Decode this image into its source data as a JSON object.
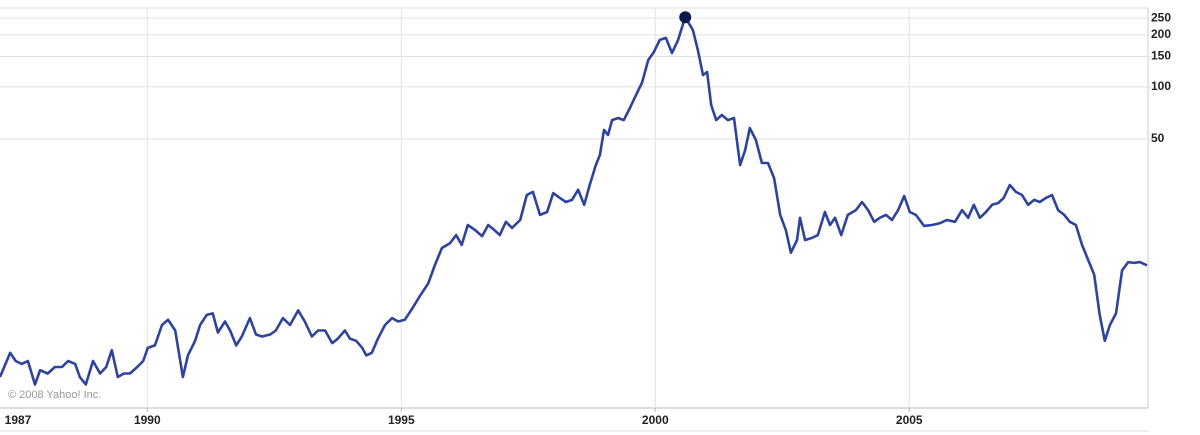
{
  "chart_data": {
    "type": "line",
    "credit": "© 2008 Yahoo! Inc.",
    "color": "#2e449c",
    "marker_color": "#0b1a4d",
    "log_scale": true,
    "grid": true,
    "xlim": [
      1987.1,
      2009.7
    ],
    "ylim": [
      1.39,
      286
    ],
    "xticks": [
      1987,
      1990,
      1995,
      2000,
      2005
    ],
    "yticks": [
      50,
      100,
      150,
      200,
      250
    ],
    "x": [
      1987.1,
      1987.3,
      1987.41,
      1987.53,
      1987.65,
      1987.79,
      1987.89,
      1988.04,
      1988.18,
      1988.32,
      1988.44,
      1988.58,
      1988.67,
      1988.79,
      1988.93,
      1989.07,
      1989.19,
      1989.3,
      1989.42,
      1989.54,
      1989.66,
      1989.8,
      1989.92,
      1990.01,
      1990.15,
      1990.29,
      1990.41,
      1990.55,
      1990.7,
      1990.8,
      1990.94,
      1991.04,
      1991.17,
      1991.29,
      1991.39,
      1991.53,
      1991.63,
      1991.75,
      1991.86,
      1992.02,
      1992.14,
      1992.26,
      1992.42,
      1992.53,
      1992.67,
      1992.81,
      1992.97,
      1993.1,
      1993.24,
      1993.36,
      1993.5,
      1993.64,
      1993.75,
      1993.89,
      1993.99,
      1994.11,
      1994.23,
      1994.31,
      1994.42,
      1994.54,
      1994.68,
      1994.82,
      1994.94,
      1995.07,
      1995.21,
      1995.37,
      1995.53,
      1995.66,
      1995.8,
      1995.96,
      1996.08,
      1996.19,
      1996.31,
      1996.45,
      1996.59,
      1996.71,
      1996.83,
      1996.94,
      1997.06,
      1997.18,
      1997.34,
      1997.47,
      1997.59,
      1997.73,
      1997.87,
      1997.99,
      1998.12,
      1998.24,
      1998.36,
      1998.48,
      1998.6,
      1998.71,
      1998.83,
      1998.91,
      1998.99,
      1999.07,
      1999.15,
      1999.27,
      1999.38,
      1999.5,
      1999.62,
      1999.74,
      1999.86,
      1999.97,
      2000.09,
      2000.21,
      2000.33,
      2000.45,
      2000.59,
      2000.74,
      2000.84,
      2000.94,
      2001.02,
      2001.1,
      2001.2,
      2001.31,
      2001.43,
      2001.55,
      2001.67,
      2001.77,
      2001.86,
      2001.98,
      2002.1,
      2002.22,
      2002.34,
      2002.46,
      2002.57,
      2002.67,
      2002.79,
      2002.85,
      2002.95,
      2003.09,
      2003.2,
      2003.34,
      2003.44,
      2003.54,
      2003.66,
      2003.79,
      2003.95,
      2004.07,
      2004.19,
      2004.31,
      2004.42,
      2004.54,
      2004.66,
      2004.78,
      2004.9,
      2005.01,
      2005.13,
      2005.29,
      2005.45,
      2005.61,
      2005.74,
      2005.9,
      2006.04,
      2006.16,
      2006.27,
      2006.39,
      2006.51,
      2006.63,
      2006.75,
      2006.86,
      2006.98,
      2007.1,
      2007.22,
      2007.34,
      2007.46,
      2007.57,
      2007.69,
      2007.81,
      2007.93,
      2008.05,
      2008.16,
      2008.28,
      2008.4,
      2008.52,
      2008.64,
      2008.75,
      2008.85,
      2008.95,
      2009.07,
      2009.19,
      2009.31,
      2009.42,
      2009.54,
      2009.68
    ],
    "values": [
      2.1,
      2.9,
      2.6,
      2.5,
      2.6,
      1.9,
      2.3,
      2.2,
      2.4,
      2.4,
      2.6,
      2.5,
      2.1,
      1.9,
      2.6,
      2.2,
      2.4,
      3.0,
      2.1,
      2.2,
      2.2,
      2.4,
      2.6,
      3.1,
      3.2,
      4.2,
      4.5,
      3.9,
      2.1,
      2.8,
      3.4,
      4.2,
      4.8,
      4.9,
      3.8,
      4.4,
      3.9,
      3.2,
      3.6,
      4.6,
      3.7,
      3.6,
      3.7,
      3.9,
      4.6,
      4.2,
      5.1,
      4.4,
      3.6,
      3.9,
      3.9,
      3.3,
      3.5,
      3.9,
      3.5,
      3.4,
      3.1,
      2.8,
      2.9,
      3.5,
      4.2,
      4.6,
      4.4,
      4.5,
      5.2,
      6.2,
      7.3,
      9.3,
      11.7,
      12.5,
      13.9,
      12.2,
      15.9,
      14.9,
      13.7,
      15.9,
      14.9,
      13.9,
      16.6,
      15.3,
      17.0,
      23.7,
      24.7,
      18.2,
      18.9,
      24.3,
      22.8,
      21.6,
      22.2,
      25.4,
      20.8,
      27.1,
      35.3,
      40.4,
      56.4,
      52.7,
      64.3,
      66.1,
      64.3,
      75.5,
      89.7,
      106,
      143,
      159,
      187,
      192,
      157,
      187,
      253,
      213,
      163,
      117,
      122,
      78.5,
      64.3,
      68.8,
      64.3,
      66.1,
      35.3,
      43.2,
      57.8,
      49.3,
      36.3,
      36.3,
      29.7,
      18.2,
      14.9,
      11.0,
      13.0,
      17.5,
      13.0,
      13.4,
      13.9,
      18.9,
      15.9,
      17.5,
      13.9,
      18.2,
      19.4,
      21.6,
      19.4,
      16.6,
      17.5,
      18.2,
      17.0,
      19.4,
      23.4,
      18.9,
      18.2,
      15.7,
      15.9,
      16.3,
      17.0,
      16.6,
      19.4,
      17.5,
      20.8,
      17.5,
      18.9,
      20.8,
      21.3,
      22.8,
      27.1,
      24.7,
      23.7,
      20.8,
      22.2,
      21.6,
      22.8,
      23.7,
      19.4,
      18.2,
      16.6,
      15.9,
      12.2,
      10.0,
      8.2,
      4.8,
      3.4,
      4.2,
      4.9,
      8.7,
      9.7,
      9.6,
      9.7,
      9.3
    ]
  }
}
